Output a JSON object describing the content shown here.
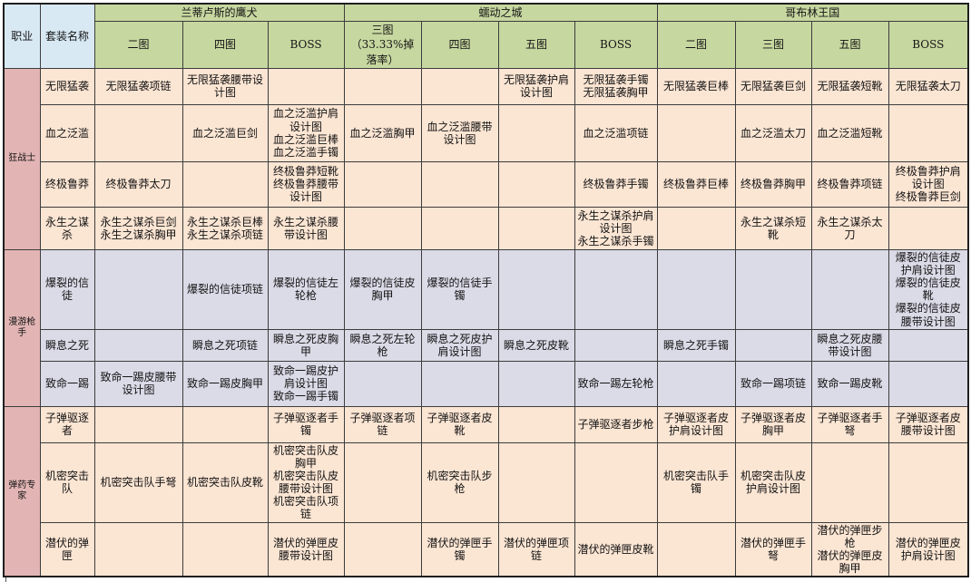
{
  "colors": {
    "green": "#c7d7a0",
    "blue": "#d8e9f4",
    "peach": "#fbe5d3",
    "lavender": "#dbdae7",
    "pink": "#e2b5b4"
  },
  "table": {
    "corner": {
      "profession": "职业",
      "set_name": "套装名称"
    },
    "dungeons": [
      {
        "name": "兰蒂卢斯的鹰犬",
        "stages": [
          "二图",
          "四图",
          "BOSS"
        ]
      },
      {
        "name": "蠕动之城",
        "stages": [
          "三图\n（33.33%掉落率）",
          "四图",
          "五图",
          "BOSS"
        ]
      },
      {
        "name": "哥布林王国",
        "stages": [
          "二图",
          "三图",
          "五图",
          "BOSS"
        ]
      }
    ],
    "groups": [
      {
        "profession": "狂战士",
        "theme": "peach",
        "rows": [
          {
            "set": "无限猛袭",
            "cells": [
              "无限猛袭项链",
              "无限猛袭腰带设计图",
              "",
              "",
              "",
              "无限猛袭护肩设计图",
              "无限猛袭手镯\n无限猛袭胸甲",
              "无限猛袭巨棒",
              "无限猛袭巨剑",
              "无限猛袭短靴",
              "无限猛袭太刀"
            ]
          },
          {
            "set": "血之泛滥",
            "cells": [
              "",
              "血之泛滥巨剑",
              "血之泛滥护肩设计图\n血之泛滥巨棒\n血之泛滥手镯",
              "血之泛滥胸甲",
              "血之泛滥腰带设计图",
              "",
              "血之泛滥项链",
              "",
              "血之泛滥太刀",
              "血之泛滥短靴",
              ""
            ]
          },
          {
            "set": "终极鲁莽",
            "cells": [
              "终极鲁莽太刀",
              "",
              "终极鲁莽短靴\n终极鲁莽腰带设计图",
              "",
              "",
              "",
              "终极鲁莽手镯",
              "终极鲁莽巨棒",
              "终极鲁莽胸甲",
              "终极鲁莽项链",
              "终极鲁莽护肩设计图\n终极鲁莽巨剑"
            ]
          },
          {
            "set": "永生之谋杀",
            "cells": [
              "永生之谋杀巨剑\n永生之谋杀胸甲",
              "永生之谋杀巨棒\n永生之谋杀项链",
              "永生之谋杀腰带设计图",
              "",
              "",
              "",
              "永生之谋杀护肩设计图\n永生之谋杀手镯",
              "",
              "永生之谋杀短靴",
              "永生之谋杀太刀",
              ""
            ]
          }
        ]
      },
      {
        "profession": "漫游枪手",
        "theme": "lavender",
        "rows": [
          {
            "set": "爆裂的信徒",
            "cells": [
              "",
              "爆裂的信徒项链",
              "爆裂的信徒左轮枪",
              "爆裂的信徒皮胸甲",
              "爆裂的信徒手镯",
              "",
              "",
              "",
              "",
              "",
              "爆裂的信徒皮护肩设计图\n爆裂的信徒皮靴\n爆裂的信徒皮腰带设计图"
            ]
          },
          {
            "set": "瞬息之死",
            "cells": [
              "",
              "瞬息之死项链",
              "瞬息之死皮胸甲",
              "瞬息之死左轮枪",
              "瞬息之死皮护肩设计图",
              "瞬息之死皮靴",
              "",
              "瞬息之死手镯",
              "",
              "瞬息之死皮腰带设计图",
              ""
            ]
          },
          {
            "set": "致命一踢",
            "cells": [
              "致命一踢皮腰带设计图",
              "致命一踢皮胸甲",
              "致命一踢皮护肩设计图\n致命一踢手镯",
              "",
              "",
              "",
              "致命一踢左轮枪",
              "",
              "致命一踢项链",
              "致命一踢皮靴",
              ""
            ]
          }
        ]
      },
      {
        "profession": "弹药专家",
        "theme": "peach",
        "rows": [
          {
            "set": "子弹驱逐者",
            "cells": [
              "",
              "",
              "子弹驱逐者手镯",
              "子弹驱逐者项链",
              "子弹驱逐者皮靴",
              "",
              "子弹驱逐者步枪",
              "子弹驱逐者皮护肩设计图",
              "子弹驱逐者皮胸甲",
              "子弹驱逐者手弩",
              "子弹驱逐者皮腰带设计图"
            ]
          },
          {
            "set": "机密突击队",
            "cells": [
              "机密突击队手弩",
              "机密突击队皮靴",
              "机密突击队皮胸甲\n机密突击队皮腰带设计图\n机密突击队项链",
              "",
              "机密突击队步枪",
              "",
              "",
              "机密突击队手镯",
              "机密突击队皮护肩设计图",
              "",
              ""
            ]
          },
          {
            "set": "潜伏的弹匣",
            "cells": [
              "",
              "",
              "潜伏的弹匣皮腰带设计图",
              "",
              "潜伏的弹匣手镯",
              "潜伏的弹匣项链",
              "潜伏的弹匣皮靴",
              "",
              "潜伏的弹匣手弩",
              "潜伏的弹匣步枪\n潜伏的弹匣皮胸甲",
              "潜伏的弹匣皮护肩设计图"
            ]
          }
        ]
      }
    ]
  }
}
